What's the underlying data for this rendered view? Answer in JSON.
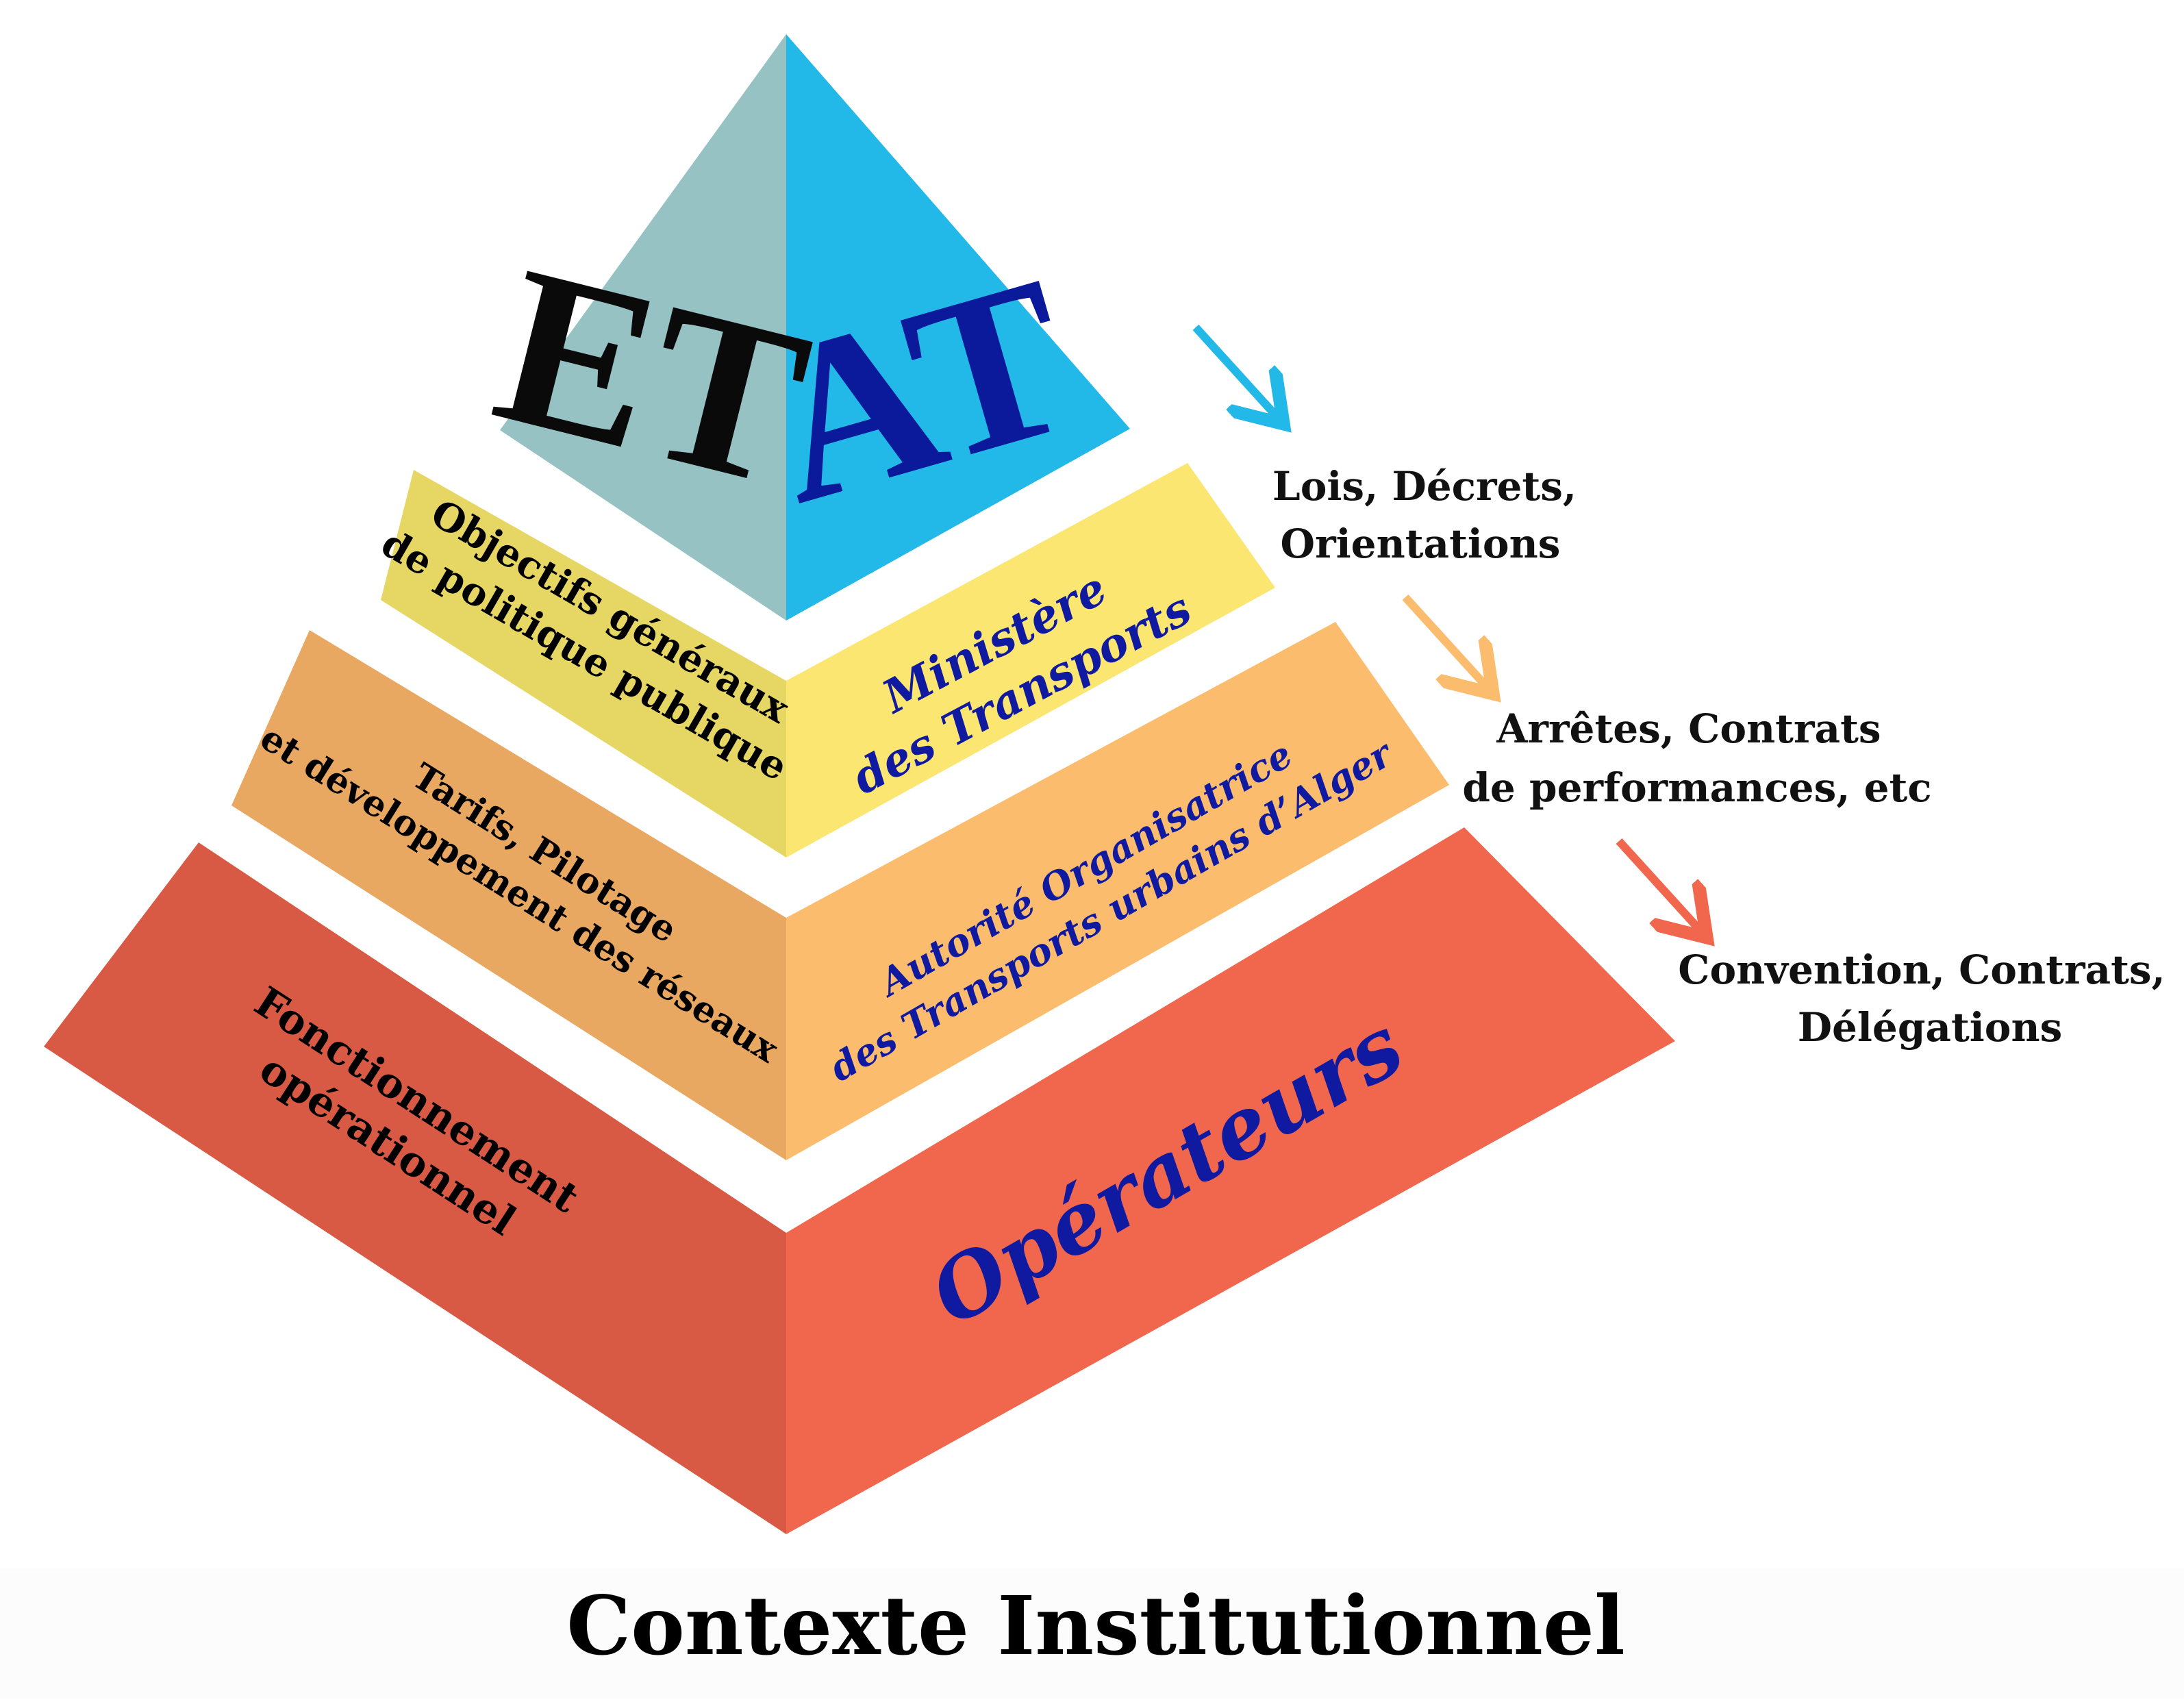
{
  "title": "Contexte Institutionnel",
  "colors": {
    "apex_left": "#96c2c3",
    "apex_right": "#22b8e8",
    "level1_left": "#e6d765",
    "level1_right": "#fbe671",
    "level2_left": "#e8a862",
    "level2_right": "#fbbd6d",
    "level3_left": "#d85a44",
    "level3_right": "#f0674d",
    "arrow1": "#22b8e8",
    "arrow2": "#fbbd6d",
    "arrow3": "#f0674d",
    "blue_text": "#101aa0"
  },
  "pyramid": {
    "apex": {
      "left_text": "ET",
      "right_text": "AT"
    },
    "levels": [
      {
        "left_lines": [
          "Objectifs généraux",
          "de politique publique"
        ],
        "right_lines": [
          "Ministère",
          "des Transports"
        ]
      },
      {
        "left_lines": [
          "Tarifs, Pilotage",
          "et développement des réseaux"
        ],
        "right_lines": [
          "Autorité Organisatrice",
          "des Transports urbains d’Alger"
        ]
      },
      {
        "left_lines": [
          "Fonctionnement",
          "opérationnel"
        ],
        "right_lines": [
          "Opérateurs"
        ]
      }
    ]
  },
  "instruments": [
    {
      "lines": [
        "Lois, Décrets,",
        "Orientations"
      ],
      "arrow_icon": "arrow-down-right-icon"
    },
    {
      "lines": [
        "Arrêtes, Contrats",
        "de performances, etc"
      ],
      "arrow_icon": "arrow-down-right-icon"
    },
    {
      "lines": [
        "Convention, Contrats,",
        "Délégations"
      ],
      "arrow_icon": "arrow-down-right-icon"
    }
  ]
}
